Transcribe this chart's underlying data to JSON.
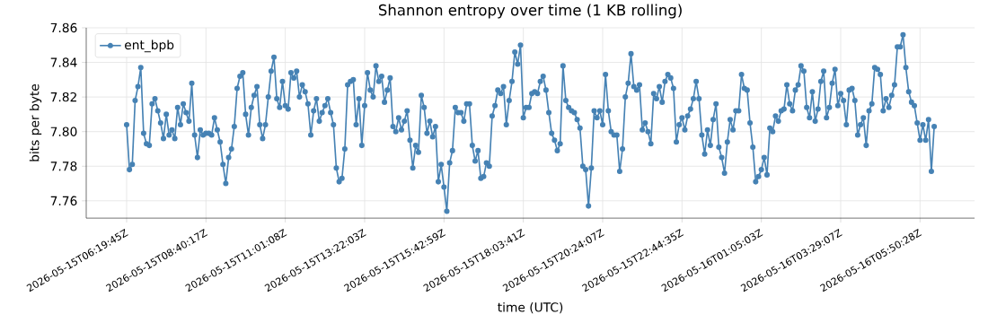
{
  "chart_data": {
    "type": "line",
    "title": "Shannon entropy over time (1 KB rolling)",
    "xlabel": "time (UTC)",
    "ylabel": "bits per byte",
    "categories": [
      "2026-05-15T06:19:45Z",
      null,
      null,
      null,
      null,
      null,
      null,
      null,
      null,
      null,
      null,
      null,
      null,
      null,
      null,
      null,
      null,
      null,
      null,
      null,
      null,
      null,
      null,
      null,
      null,
      null,
      null,
      null,
      "2026-05-15T08:40:17Z",
      null,
      null,
      null,
      null,
      null,
      null,
      null,
      null,
      null,
      null,
      null,
      null,
      null,
      null,
      null,
      null,
      null,
      null,
      null,
      null,
      null,
      null,
      null,
      null,
      null,
      null,
      null,
      "2026-05-15T11:01:08Z",
      null,
      null,
      null,
      null,
      null,
      null,
      null,
      null,
      null,
      null,
      null,
      null,
      null,
      null,
      null,
      null,
      null,
      null,
      null,
      null,
      null,
      null,
      null,
      null,
      null,
      null,
      null,
      "2026-05-15T13:22:03Z",
      null,
      null,
      null,
      null,
      null,
      null,
      null,
      null,
      null,
      null,
      null,
      null,
      null,
      null,
      null,
      null,
      null,
      null,
      null,
      null,
      null,
      null,
      null,
      null,
      null,
      null,
      null,
      "2026-05-15T15:42:59Z",
      null,
      null,
      null,
      null,
      null,
      null,
      null,
      null,
      null,
      null,
      null,
      null,
      null,
      null,
      null,
      null,
      null,
      null,
      null,
      null,
      null,
      null,
      null,
      null,
      null,
      null,
      null,
      "2026-05-15T18:03:41Z",
      null,
      null,
      null,
      null,
      null,
      null,
      null,
      null,
      null,
      null,
      null,
      null,
      null,
      null,
      null,
      null,
      null,
      null,
      null,
      null,
      null,
      null,
      null,
      null,
      null,
      null,
      null,
      "2026-05-15T20:24:07Z",
      null,
      null,
      null,
      null,
      null,
      null,
      null,
      null,
      null,
      null,
      null,
      null,
      null,
      null,
      null,
      null,
      null,
      null,
      null,
      null,
      null,
      null,
      null,
      null,
      null,
      null,
      null,
      "2026-05-15T22:44:35Z",
      null,
      null,
      null,
      null,
      null,
      null,
      null,
      null,
      null,
      null,
      null,
      null,
      null,
      null,
      null,
      null,
      null,
      null,
      null,
      null,
      null,
      null,
      null,
      null,
      null,
      null,
      null,
      "2026-05-16T01:05:03Z",
      null,
      null,
      null,
      null,
      null,
      null,
      null,
      null,
      null,
      null,
      null,
      null,
      null,
      null,
      null,
      null,
      null,
      null,
      null,
      null,
      null,
      null,
      null,
      null,
      null,
      null,
      null,
      "2026-05-16T03:29:07Z",
      null,
      null,
      null,
      null,
      null,
      null,
      null,
      null,
      null,
      null,
      null,
      null,
      null,
      null,
      null,
      null,
      null,
      null,
      null,
      null,
      null,
      null,
      null,
      null,
      null,
      null,
      null,
      "2026-05-16T05:50:28Z",
      null,
      null,
      null,
      null,
      null
    ],
    "series": [
      {
        "name": "ent_bpb",
        "color": "#4682b4",
        "values": [
          7.804,
          7.778,
          7.781,
          7.818,
          7.826,
          7.837,
          7.799,
          7.793,
          7.792,
          7.816,
          7.819,
          7.812,
          7.805,
          7.796,
          7.81,
          7.798,
          7.801,
          7.796,
          7.814,
          7.804,
          7.816,
          7.811,
          7.806,
          7.828,
          7.798,
          7.785,
          7.801,
          7.798,
          7.799,
          7.799,
          7.798,
          7.808,
          7.801,
          7.794,
          7.781,
          7.77,
          7.785,
          7.79,
          7.803,
          7.825,
          7.832,
          7.834,
          7.81,
          7.798,
          7.814,
          7.821,
          7.826,
          7.804,
          7.796,
          7.804,
          7.82,
          7.835,
          7.843,
          7.819,
          7.814,
          7.829,
          7.815,
          7.813,
          7.834,
          7.831,
          7.835,
          7.82,
          7.827,
          7.823,
          7.816,
          7.798,
          7.812,
          7.819,
          7.806,
          7.811,
          7.815,
          7.819,
          7.811,
          7.804,
          7.779,
          7.771,
          7.773,
          7.79,
          7.827,
          7.829,
          7.83,
          7.804,
          7.819,
          7.792,
          7.815,
          7.834,
          7.824,
          7.82,
          7.838,
          7.829,
          7.832,
          7.817,
          7.824,
          7.831,
          7.803,
          7.8,
          7.808,
          7.801,
          7.806,
          7.812,
          7.795,
          7.779,
          7.792,
          7.788,
          7.821,
          7.814,
          7.799,
          7.806,
          7.797,
          7.803,
          7.771,
          7.781,
          7.768,
          7.754,
          7.782,
          7.789,
          7.814,
          7.811,
          7.811,
          7.806,
          7.816,
          7.816,
          7.792,
          7.783,
          7.789,
          7.773,
          7.774,
          7.782,
          7.78,
          7.809,
          7.815,
          7.824,
          7.822,
          7.826,
          7.804,
          7.818,
          7.829,
          7.846,
          7.839,
          7.85,
          7.808,
          7.814,
          7.814,
          7.822,
          7.823,
          7.822,
          7.829,
          7.832,
          7.824,
          7.811,
          7.799,
          7.795,
          7.789,
          7.793,
          7.838,
          7.818,
          7.814,
          7.812,
          7.811,
          7.807,
          7.802,
          7.78,
          7.778,
          7.757,
          7.779,
          7.812,
          7.808,
          7.812,
          7.804,
          7.833,
          7.812,
          7.8,
          7.798,
          7.798,
          7.777,
          7.79,
          7.82,
          7.828,
          7.845,
          7.826,
          7.824,
          7.827,
          7.801,
          7.805,
          7.8,
          7.793,
          7.822,
          7.819,
          7.826,
          7.817,
          7.829,
          7.833,
          7.831,
          7.825,
          7.794,
          7.804,
          7.808,
          7.801,
          7.809,
          7.813,
          7.819,
          7.829,
          7.819,
          7.798,
          7.787,
          7.801,
          7.792,
          7.807,
          7.816,
          7.791,
          7.785,
          7.776,
          7.794,
          7.807,
          7.801,
          7.812,
          7.812,
          7.833,
          7.825,
          7.824,
          7.805,
          7.791,
          7.771,
          7.774,
          7.778,
          7.785,
          7.775,
          7.802,
          7.8,
          7.809,
          7.806,
          7.812,
          7.813,
          7.827,
          7.816,
          7.812,
          7.824,
          7.827,
          7.838,
          7.835,
          7.814,
          7.808,
          7.823,
          7.806,
          7.813,
          7.829,
          7.835,
          7.808,
          7.814,
          7.828,
          7.836,
          7.815,
          7.822,
          7.818,
          7.804,
          7.824,
          7.825,
          7.818,
          7.798,
          7.804,
          7.808,
          7.792,
          7.812,
          7.816,
          7.837,
          7.836,
          7.833,
          7.812,
          7.819,
          7.814,
          7.821,
          7.827,
          7.849,
          7.849,
          7.856,
          7.837,
          7.823,
          7.817,
          7.815,
          7.805,
          7.795,
          7.804,
          7.795,
          7.807,
          7.777,
          7.803
        ]
      }
    ],
    "ylim": [
      7.75,
      7.86
    ],
    "yticks": [
      7.76,
      7.78,
      {
        "value": 7.8,
        "label": "7.80"
      },
      7.82,
      7.84,
      7.86
    ],
    "grid": true,
    "legend": "top left",
    "marker": "circle",
    "line_style": "solid"
  }
}
